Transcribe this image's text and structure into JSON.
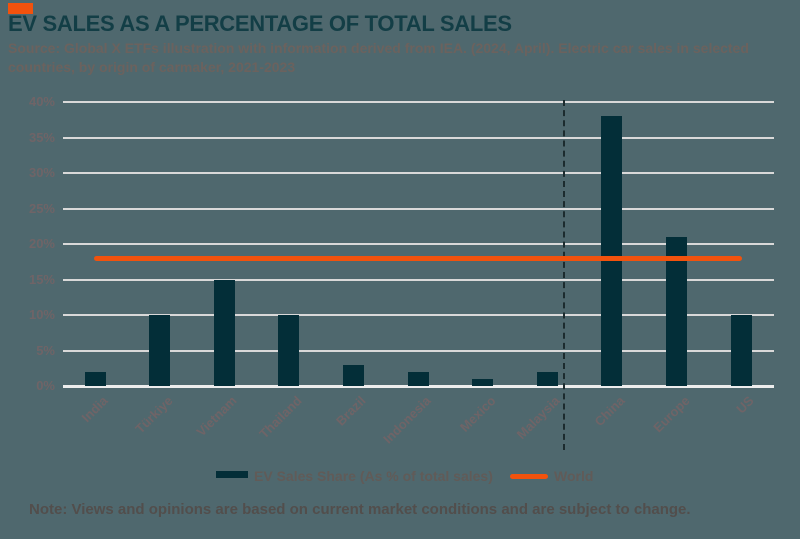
{
  "header": {
    "accent_color": "#F2520D",
    "title": "EV SALES AS A PERCENTAGE OF TOTAL SALES",
    "source_line1": "Source: Global X ETFs illustration with information derived from IEA. (2024, April). Electric car sales in selected",
    "source_line2": "countries, by origin of carmaker, 2021-2023"
  },
  "chart_data": {
    "type": "bar",
    "title": "EV SALES AS A PERCENTAGE OF TOTAL SALES",
    "categories": [
      "India",
      "Türkiye",
      "Vietnam",
      "Thailand",
      "Brazil",
      "Indonesia",
      "Mexico",
      "Malaysia",
      "China",
      "Europe",
      "US"
    ],
    "series": [
      {
        "name": "EV Sales Share (As % of total sales)",
        "type": "bar",
        "color": "#032E38",
        "values": [
          2,
          10,
          15,
          10,
          3,
          2,
          1,
          2,
          38,
          21,
          10
        ]
      },
      {
        "name": "World",
        "type": "line",
        "color": "#F2520D",
        "value": 18
      }
    ],
    "xlabel": "",
    "ylabel": "",
    "ylim": [
      0,
      40
    ],
    "ytick_step": 5,
    "ytick_labels": [
      "0%",
      "5%",
      "10%",
      "15%",
      "20%",
      "25%",
      "30%",
      "35%",
      "40%"
    ],
    "grid": true,
    "gridline_color": "#D9D9D9",
    "separator_after_index": 7,
    "legend_position": "bottom"
  },
  "legend": {
    "bar_label": "EV Sales Share (As % of total sales)",
    "line_label": "World"
  },
  "footer": {
    "note": "Note: Views and opinions are based on current market conditions and are subject to change."
  },
  "colors": {
    "background": "#4F686E",
    "bar": "#032E38",
    "world_line": "#F2520D",
    "title_text": "#133E46",
    "axis_text": "#6F6467",
    "source_text": "#6B625E",
    "note_text": "#524E4C",
    "gridline": "#D9D9D9"
  }
}
